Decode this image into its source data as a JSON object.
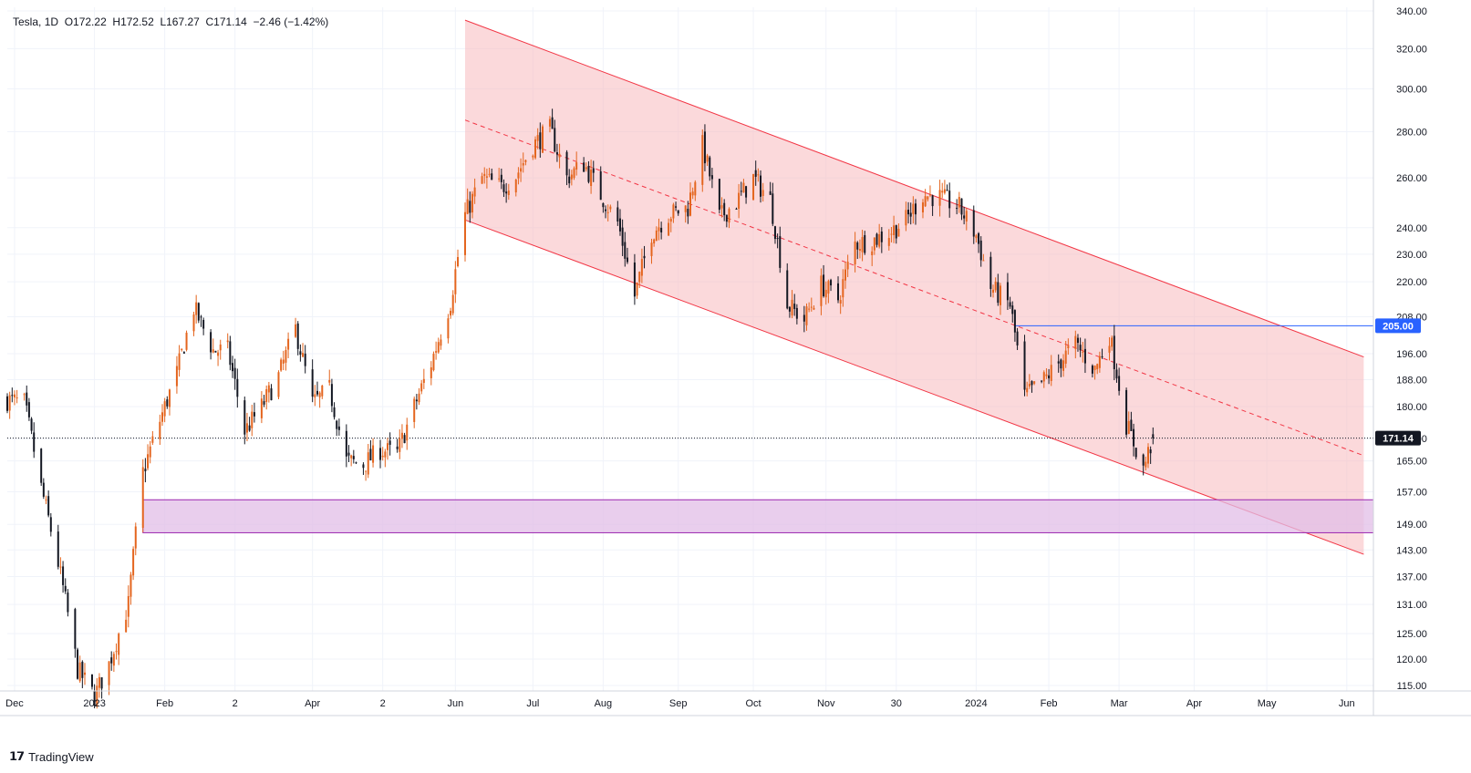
{
  "legend": {
    "symbol": "Tesla",
    "interval": "1D",
    "ohlc_text": "O172.22  H172.52  L167.27  C171.14  −2.46 (−1.42%)"
  },
  "brand": {
    "name": "TradingView"
  },
  "colors": {
    "up": "#e4651e",
    "down": "#131722",
    "channel_line": "#f23645",
    "channel_fill": "#f7b9bd",
    "zone_fill": "#e1bee7",
    "zone_border": "#9c27b0",
    "level_line": "#2962ff",
    "price_badge": "#131722"
  },
  "chart_data": {
    "type": "candlestick",
    "title": "Tesla",
    "interval": "1D",
    "y_scale": "log",
    "ylim": [
      114,
      342
    ],
    "xlim": [
      "2022-11-28",
      "2024-06-14"
    ],
    "y_ticks": [
      "340.00",
      "320.00",
      "300.00",
      "280.00",
      "260.00",
      "240.00",
      "230.00",
      "220.00",
      "208.00",
      "196.00",
      "188.00",
      "180.00",
      "171.00",
      "165.00",
      "157.00",
      "149.00",
      "143.00",
      "137.00",
      "131.00",
      "125.00",
      "120.00",
      "115.00"
    ],
    "x_ticks": [
      {
        "label": "Dec",
        "date": "2022-12-01"
      },
      {
        "label": "2023",
        "date": "2023-01-03"
      },
      {
        "label": "Feb",
        "date": "2023-02-01"
      },
      {
        "label": "2",
        "date": "2023-03-02"
      },
      {
        "label": "Apr",
        "date": "2023-04-03"
      },
      {
        "label": "2",
        "date": "2023-05-02"
      },
      {
        "label": "Jun",
        "date": "2023-06-01"
      },
      {
        "label": "Jul",
        "date": "2023-07-03"
      },
      {
        "label": "Aug",
        "date": "2023-08-01"
      },
      {
        "label": "Sep",
        "date": "2023-09-01"
      },
      {
        "label": "Oct",
        "date": "2023-10-02"
      },
      {
        "label": "Nov",
        "date": "2023-11-01"
      },
      {
        "label": "30",
        "date": "2023-11-30"
      },
      {
        "label": "2024",
        "date": "2024-01-02"
      },
      {
        "label": "Feb",
        "date": "2024-02-01"
      },
      {
        "label": "Mar",
        "date": "2024-03-01"
      },
      {
        "label": "Apr",
        "date": "2024-04-01"
      },
      {
        "label": "May",
        "date": "2024-05-01"
      },
      {
        "label": "Jun",
        "date": "2024-06-03"
      }
    ],
    "closes": [
      {
        "date": "2022-11-28",
        "close": 182
      },
      {
        "date": "2022-12-05",
        "close": 181
      },
      {
        "date": "2022-12-12",
        "close": 158
      },
      {
        "date": "2022-12-19",
        "close": 140
      },
      {
        "date": "2022-12-27",
        "close": 118
      },
      {
        "date": "2023-01-03",
        "close": 113
      },
      {
        "date": "2023-01-09",
        "close": 119
      },
      {
        "date": "2023-01-17",
        "close": 131
      },
      {
        "date": "2023-01-23",
        "close": 162
      },
      {
        "date": "2023-01-30",
        "close": 176
      },
      {
        "date": "2023-02-06",
        "close": 190
      },
      {
        "date": "2023-02-13",
        "close": 211
      },
      {
        "date": "2023-02-21",
        "close": 197
      },
      {
        "date": "2023-02-27",
        "close": 197
      },
      {
        "date": "2023-03-06",
        "close": 173
      },
      {
        "date": "2023-03-13",
        "close": 180
      },
      {
        "date": "2023-03-20",
        "close": 189
      },
      {
        "date": "2023-03-27",
        "close": 204
      },
      {
        "date": "2023-04-03",
        "close": 181
      },
      {
        "date": "2023-04-10",
        "close": 185
      },
      {
        "date": "2023-04-17",
        "close": 165
      },
      {
        "date": "2023-04-24",
        "close": 164
      },
      {
        "date": "2023-05-01",
        "close": 168
      },
      {
        "date": "2023-05-08",
        "close": 167
      },
      {
        "date": "2023-05-15",
        "close": 180
      },
      {
        "date": "2023-05-22",
        "close": 193
      },
      {
        "date": "2023-05-30",
        "close": 213
      },
      {
        "date": "2023-06-05",
        "close": 245
      },
      {
        "date": "2023-06-12",
        "close": 260
      },
      {
        "date": "2023-06-20",
        "close": 256
      },
      {
        "date": "2023-06-26",
        "close": 261
      },
      {
        "date": "2023-07-03",
        "close": 274
      },
      {
        "date": "2023-07-10",
        "close": 281
      },
      {
        "date": "2023-07-17",
        "close": 260
      },
      {
        "date": "2023-07-24",
        "close": 266
      },
      {
        "date": "2023-07-31",
        "close": 253
      },
      {
        "date": "2023-08-07",
        "close": 242
      },
      {
        "date": "2023-08-14",
        "close": 215
      },
      {
        "date": "2023-08-21",
        "close": 238
      },
      {
        "date": "2023-08-28",
        "close": 245
      },
      {
        "date": "2023-09-05",
        "close": 248
      },
      {
        "date": "2023-09-11",
        "close": 274
      },
      {
        "date": "2023-09-18",
        "close": 244
      },
      {
        "date": "2023-09-25",
        "close": 250
      },
      {
        "date": "2023-10-02",
        "close": 260
      },
      {
        "date": "2023-10-09",
        "close": 251
      },
      {
        "date": "2023-10-16",
        "close": 212
      },
      {
        "date": "2023-10-23",
        "close": 207
      },
      {
        "date": "2023-10-30",
        "close": 219
      },
      {
        "date": "2023-11-06",
        "close": 214
      },
      {
        "date": "2023-11-13",
        "close": 234
      },
      {
        "date": "2023-11-20",
        "close": 235
      },
      {
        "date": "2023-11-27",
        "close": 238
      },
      {
        "date": "2023-12-04",
        "close": 243
      },
      {
        "date": "2023-12-11",
        "close": 253
      },
      {
        "date": "2023-12-18",
        "close": 252
      },
      {
        "date": "2023-12-26",
        "close": 248
      },
      {
        "date": "2024-01-02",
        "close": 237
      },
      {
        "date": "2024-01-08",
        "close": 218
      },
      {
        "date": "2024-01-16",
        "close": 212
      },
      {
        "date": "2024-01-22",
        "close": 183
      },
      {
        "date": "2024-01-29",
        "close": 187
      },
      {
        "date": "2024-02-05",
        "close": 193
      },
      {
        "date": "2024-02-12",
        "close": 199
      },
      {
        "date": "2024-02-20",
        "close": 191
      },
      {
        "date": "2024-02-26",
        "close": 202
      },
      {
        "date": "2024-03-04",
        "close": 175
      },
      {
        "date": "2024-03-11",
        "close": 163
      },
      {
        "date": "2024-03-15",
        "close": 171
      }
    ],
    "last_close": 171.14,
    "last_label": "171.14",
    "annotations": {
      "channel": {
        "upper": [
          {
            "date": "2023-06-05",
            "price": 335
          },
          {
            "date": "2024-06-10",
            "price": 195
          }
        ],
        "lower": [
          {
            "date": "2023-06-05",
            "price": 243
          },
          {
            "date": "2024-06-10",
            "price": 142
          }
        ],
        "midline": "dashed"
      },
      "level_205": {
        "price": 205,
        "from": "2024-01-18",
        "label": "205.00"
      },
      "zone": {
        "from": "2023-01-23",
        "to": "2024-06-14",
        "low": 147,
        "high": 155
      }
    }
  }
}
